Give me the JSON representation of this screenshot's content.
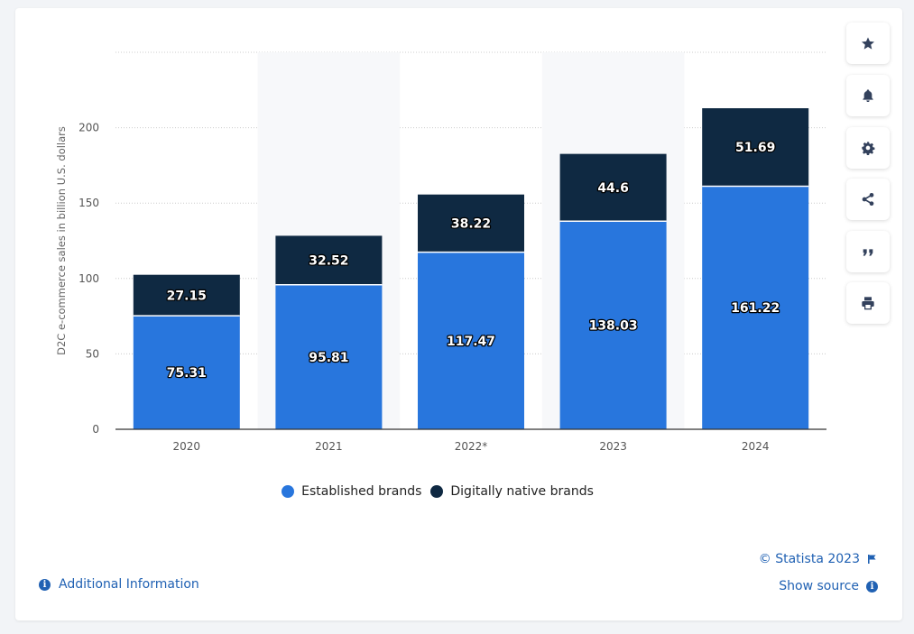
{
  "colors": {
    "established": "#2876dd",
    "digitally_native": "#0f2942",
    "gridline": "#cccccc",
    "axis_text": "#555555",
    "link": "#2061b3"
  },
  "chart_data": {
    "type": "bar",
    "stacked": true,
    "categories": [
      "2020",
      "2021",
      "2022*",
      "2023",
      "2024"
    ],
    "series": [
      {
        "name": "Established brands",
        "values": [
          75.31,
          95.81,
          117.47,
          138.03,
          161.22
        ]
      },
      {
        "name": "Digitally native brands",
        "values": [
          27.15,
          32.52,
          38.22,
          44.6,
          51.69
        ]
      }
    ],
    "ylabel": "D2C e-commerce sales in billion U.S. dollars",
    "xlabel": "",
    "ylim": [
      0,
      250
    ],
    "yticks": [
      0,
      50,
      100,
      150,
      200
    ],
    "grid": true,
    "legend_position": "bottom"
  },
  "legend": {
    "items": [
      {
        "label": "Established brands"
      },
      {
        "label": "Digitally native brands"
      }
    ]
  },
  "toolbar": {
    "icons": [
      "star-icon",
      "bell-icon",
      "gear-icon",
      "share-icon",
      "quote-icon",
      "print-icon"
    ]
  },
  "footer": {
    "additional_info": "Additional Information",
    "copyright": "© Statista 2023",
    "show_source": "Show source"
  }
}
